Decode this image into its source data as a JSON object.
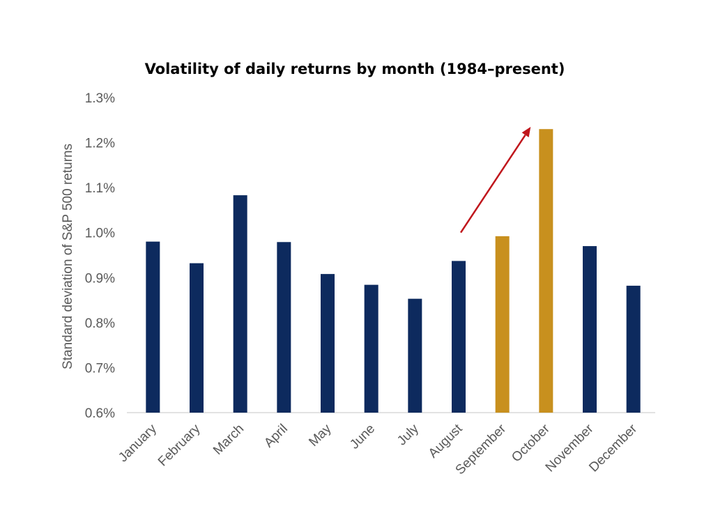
{
  "chart_data": {
    "type": "bar",
    "title": "Volatility of daily returns by month (1984–present)",
    "ylabel": "Standard deviation of S&P 500 returns",
    "xlabel": "",
    "ylim": [
      0.6,
      1.3
    ],
    "yticks": [
      0.6,
      0.7,
      0.8,
      0.9,
      1.0,
      1.1,
      1.2,
      1.3
    ],
    "yticks_text": [
      "0.6%",
      "0.7%",
      "0.8%",
      "0.9%",
      "1.0%",
      "1.1%",
      "1.2%",
      "1.3%"
    ],
    "grid": false,
    "legend": "none",
    "categories": [
      "January",
      "February",
      "March",
      "April",
      "May",
      "June",
      "July",
      "August",
      "September",
      "October",
      "November",
      "December"
    ],
    "values": [
      0.98,
      0.932,
      1.083,
      0.979,
      0.908,
      0.884,
      0.853,
      0.937,
      0.992,
      1.23,
      0.97,
      0.882
    ],
    "colors": {
      "default": "#0d2a5e",
      "highlight": "#c8901e",
      "arrow": "#c0161c"
    },
    "highlighted_categories": [
      "September",
      "October"
    ],
    "annotation": {
      "type": "arrow",
      "from": {
        "category": "August",
        "value": 1.0
      },
      "to": {
        "category": "October",
        "value": 1.235
      }
    }
  }
}
